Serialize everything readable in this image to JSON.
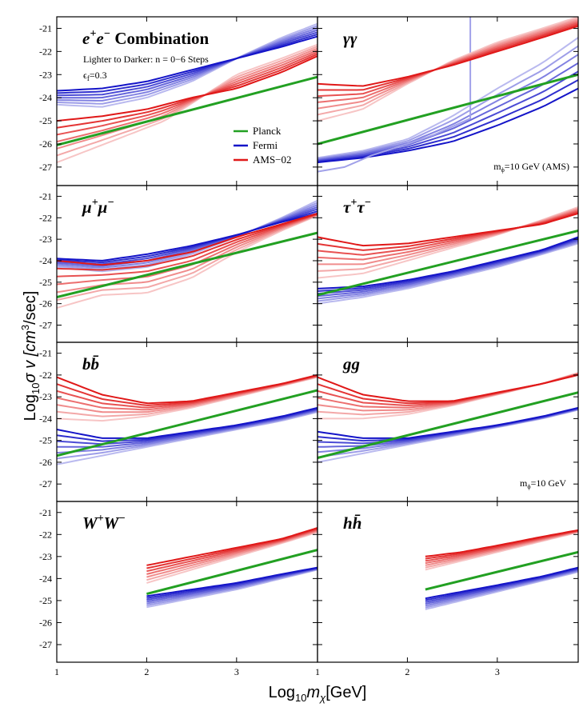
{
  "figure": {
    "xlabel_main": "Log",
    "xlabel_sub": "10",
    "xlabel_var": "m",
    "xlabel_var_sub": "χ",
    "xlabel_unit": "[GeV]",
    "ylabel_main": "Log",
    "ylabel_sub": "10",
    "ylabel_rest": "σ v [cm",
    "ylabel_sup": "3",
    "ylabel_end": "/sec]",
    "x_ticks": [
      "1",
      "2",
      "3",
      "1",
      "2",
      "3"
    ],
    "y_ticks": [
      "-21",
      "-22",
      "-23",
      "-24",
      "-25",
      "-26",
      "-27"
    ]
  },
  "legend": {
    "items": [
      {
        "label": "Planck",
        "color": "#22a022"
      },
      {
        "label": "Fermi",
        "color": "#1414c8"
      },
      {
        "label": "AMS−02",
        "color": "#e01818"
      }
    ]
  },
  "annotations": {
    "subtitle": "Lighter to Darker: n = 0−6 Steps",
    "eps_main": "ϵ",
    "eps_sub": "f",
    "eps_val": "=0.3",
    "mphi_ams_main": "m",
    "mphi_ams_sub": "ϕ",
    "mphi_ams_val": "=10 GeV (AMS)",
    "mphi_gg_main": "m",
    "mphi_gg_sub": "ϕ",
    "mphi_gg_val": "=10 GeV"
  },
  "chart_data": {
    "type": "line",
    "xlim": [
      1,
      3.9
    ],
    "ylim": [
      -27.8,
      -20.5
    ],
    "n_steps": 7,
    "colors": {
      "planck": "#22a022",
      "fermi": "#1414c8",
      "ams": "#e01818"
    },
    "panels": [
      {
        "key": "ee",
        "title_base": "e",
        "title_sup1": "+",
        "title_mid": "e",
        "title_sup2": "−",
        "title_suffix": " Combination",
        "x_start": 1.0,
        "x_end": 3.9,
        "planck": [
          [
            1.0,
            -26.05
          ],
          [
            3.9,
            -23.1
          ]
        ],
        "fermi_dark": [
          [
            1.0,
            -23.7
          ],
          [
            1.5,
            -23.6
          ],
          [
            2.0,
            -23.3
          ],
          [
            2.5,
            -22.8
          ],
          [
            3.0,
            -22.3
          ],
          [
            3.5,
            -21.8
          ],
          [
            3.9,
            -21.35
          ]
        ],
        "fermi_light": [
          [
            1.0,
            -24.3
          ],
          [
            1.5,
            -24.4
          ],
          [
            2.0,
            -24.0
          ],
          [
            2.5,
            -23.3
          ],
          [
            3.0,
            -22.3
          ],
          [
            3.5,
            -21.4
          ],
          [
            3.9,
            -20.8
          ]
        ],
        "ams_dark": [
          [
            1.0,
            -25.0
          ],
          [
            1.5,
            -24.8
          ],
          [
            2.0,
            -24.5
          ],
          [
            2.5,
            -24.0
          ],
          [
            3.0,
            -23.6
          ],
          [
            3.5,
            -22.9
          ],
          [
            3.9,
            -22.2
          ]
        ],
        "ams_light": [
          [
            1.0,
            -26.8
          ],
          [
            1.4,
            -26.2
          ],
          [
            1.8,
            -25.6
          ],
          [
            2.2,
            -25.0
          ],
          [
            2.6,
            -24.0
          ],
          [
            3.0,
            -23.0
          ],
          [
            3.5,
            -22.3
          ],
          [
            3.9,
            -21.7
          ]
        ]
      },
      {
        "key": "gg_photon",
        "title_base": "γγ",
        "title_sup1": "",
        "title_mid": "",
        "title_sup2": "",
        "title_suffix": "",
        "x_start": 1.0,
        "x_end": 3.9,
        "planck": [
          [
            1.0,
            -26.0
          ],
          [
            3.9,
            -23.0
          ]
        ],
        "fermi_dark": [
          [
            1.0,
            -26.8
          ],
          [
            1.5,
            -26.6
          ],
          [
            2.0,
            -26.3
          ],
          [
            2.5,
            -25.9
          ],
          [
            3.0,
            -25.2
          ],
          [
            3.5,
            -24.4
          ],
          [
            3.9,
            -23.6
          ]
        ],
        "fermi_light": [
          [
            1.0,
            -26.6
          ],
          [
            1.5,
            -26.3
          ],
          [
            2.0,
            -25.8
          ],
          [
            2.5,
            -24.8
          ],
          [
            3.0,
            -23.6
          ],
          [
            3.5,
            -22.5
          ],
          [
            3.9,
            -21.4
          ]
        ],
        "ams_dark": [
          [
            1.0,
            -23.4
          ],
          [
            1.5,
            -23.5
          ],
          [
            2.0,
            -23.1
          ],
          [
            2.5,
            -22.6
          ],
          [
            3.0,
            -22.0
          ],
          [
            3.5,
            -21.4
          ],
          [
            3.9,
            -20.9
          ]
        ],
        "ams_light": [
          [
            1.0,
            -25.0
          ],
          [
            1.5,
            -24.5
          ],
          [
            2.0,
            -23.4
          ],
          [
            2.5,
            -22.4
          ],
          [
            3.0,
            -21.6
          ],
          [
            3.5,
            -21.0
          ],
          [
            3.9,
            -20.5
          ]
        ],
        "fermi_step": [
          [
            1.0,
            -27.2
          ],
          [
            1.3,
            -27.0
          ],
          [
            1.6,
            -26.5
          ],
          [
            2.0,
            -26.0
          ],
          [
            2.3,
            -25.6
          ],
          [
            2.7,
            -24.9
          ],
          [
            2.7,
            -20.5
          ]
        ]
      },
      {
        "key": "mumu",
        "title_base": "μ",
        "title_sup1": "+",
        "title_mid": "μ",
        "title_sup2": "−",
        "title_suffix": "",
        "x_start": 1.0,
        "x_end": 3.9,
        "planck": [
          [
            1.0,
            -25.7
          ],
          [
            3.9,
            -22.7
          ]
        ],
        "fermi_dark": [
          [
            1.0,
            -23.9
          ],
          [
            1.5,
            -24.0
          ],
          [
            2.0,
            -23.7
          ],
          [
            2.5,
            -23.3
          ],
          [
            3.0,
            -22.8
          ],
          [
            3.5,
            -22.2
          ],
          [
            3.9,
            -21.8
          ]
        ],
        "fermi_light": [
          [
            1.0,
            -24.3
          ],
          [
            1.5,
            -24.5
          ],
          [
            2.0,
            -24.3
          ],
          [
            2.5,
            -23.7
          ],
          [
            3.0,
            -22.9
          ],
          [
            3.5,
            -22.0
          ],
          [
            3.9,
            -21.2
          ]
        ],
        "ams_dark": [
          [
            1.0,
            -24.0
          ],
          [
            1.5,
            -24.2
          ],
          [
            2.0,
            -24.0
          ],
          [
            2.5,
            -23.6
          ],
          [
            3.0,
            -22.9
          ],
          [
            3.5,
            -22.3
          ],
          [
            3.9,
            -21.8
          ]
        ],
        "ams_light": [
          [
            1.0,
            -26.2
          ],
          [
            1.5,
            -25.6
          ],
          [
            2.0,
            -25.5
          ],
          [
            2.5,
            -24.8
          ],
          [
            3.0,
            -23.6
          ],
          [
            3.5,
            -22.6
          ],
          [
            3.9,
            -21.9
          ]
        ]
      },
      {
        "key": "tautau",
        "title_base": "τ",
        "title_sup1": "+",
        "title_mid": "τ",
        "title_sup2": "−",
        "title_suffix": "",
        "x_start": 1.0,
        "x_end": 3.9,
        "planck": [
          [
            1.0,
            -25.6
          ],
          [
            3.9,
            -22.6
          ]
        ],
        "fermi_dark": [
          [
            1.0,
            -25.3
          ],
          [
            1.5,
            -25.2
          ],
          [
            2.0,
            -24.9
          ],
          [
            2.5,
            -24.5
          ],
          [
            3.0,
            -24.0
          ],
          [
            3.5,
            -23.5
          ],
          [
            3.9,
            -22.9
          ]
        ],
        "fermi_light": [
          [
            1.0,
            -26.0
          ],
          [
            1.5,
            -25.7
          ],
          [
            2.0,
            -25.3
          ],
          [
            2.5,
            -24.8
          ],
          [
            3.0,
            -24.3
          ],
          [
            3.5,
            -23.7
          ],
          [
            3.9,
            -23.2
          ]
        ],
        "ams_dark": [
          [
            1.0,
            -22.9
          ],
          [
            1.5,
            -23.3
          ],
          [
            2.0,
            -23.2
          ],
          [
            2.5,
            -22.9
          ],
          [
            3.0,
            -22.6
          ],
          [
            3.5,
            -22.3
          ],
          [
            3.9,
            -21.8
          ]
        ],
        "ams_light": [
          [
            1.0,
            -24.8
          ],
          [
            1.5,
            -24.6
          ],
          [
            2.0,
            -24.0
          ],
          [
            2.5,
            -23.4
          ],
          [
            3.0,
            -22.8
          ],
          [
            3.5,
            -22.1
          ],
          [
            3.9,
            -21.5
          ]
        ]
      },
      {
        "key": "bb",
        "title_base": "b",
        "title_sup1": "",
        "title_mid": "b̄",
        "title_sup2": "",
        "title_suffix": "",
        "x_start": 1.0,
        "x_end": 3.9,
        "planck": [
          [
            1.0,
            -25.7
          ],
          [
            3.9,
            -22.7
          ]
        ],
        "fermi_dark": [
          [
            1.0,
            -24.5
          ],
          [
            1.5,
            -24.9
          ],
          [
            2.0,
            -24.9
          ],
          [
            2.5,
            -24.6
          ],
          [
            3.0,
            -24.3
          ],
          [
            3.5,
            -23.9
          ],
          [
            3.9,
            -23.5
          ]
        ],
        "fermi_light": [
          [
            1.0,
            -26.1
          ],
          [
            1.5,
            -25.7
          ],
          [
            2.0,
            -25.3
          ],
          [
            2.5,
            -24.9
          ],
          [
            3.0,
            -24.5
          ],
          [
            3.5,
            -24.1
          ],
          [
            3.9,
            -23.7
          ]
        ],
        "ams_dark": [
          [
            1.0,
            -22.1
          ],
          [
            1.5,
            -22.9
          ],
          [
            2.0,
            -23.3
          ],
          [
            2.5,
            -23.2
          ],
          [
            3.0,
            -22.8
          ],
          [
            3.5,
            -22.4
          ],
          [
            3.9,
            -22.0
          ]
        ],
        "ams_light": [
          [
            1.0,
            -24.0
          ],
          [
            1.5,
            -24.1
          ],
          [
            2.0,
            -23.9
          ],
          [
            2.5,
            -23.5
          ],
          [
            3.0,
            -23.0
          ],
          [
            3.5,
            -22.5
          ],
          [
            3.9,
            -22.1
          ]
        ]
      },
      {
        "key": "gg",
        "title_base": "gg",
        "title_sup1": "",
        "title_mid": "",
        "title_sup2": "",
        "title_suffix": "",
        "x_start": 1.0,
        "x_end": 3.9,
        "planck": [
          [
            1.0,
            -25.8
          ],
          [
            3.9,
            -22.8
          ]
        ],
        "fermi_dark": [
          [
            1.0,
            -24.6
          ],
          [
            1.5,
            -24.9
          ],
          [
            2.0,
            -24.9
          ],
          [
            2.5,
            -24.6
          ],
          [
            3.0,
            -24.3
          ],
          [
            3.5,
            -23.9
          ],
          [
            3.9,
            -23.5
          ]
        ],
        "fermi_light": [
          [
            1.0,
            -26.0
          ],
          [
            1.5,
            -25.6
          ],
          [
            2.0,
            -25.2
          ],
          [
            2.5,
            -24.8
          ],
          [
            3.0,
            -24.4
          ],
          [
            3.5,
            -24.0
          ],
          [
            3.9,
            -23.6
          ]
        ],
        "ams_dark": [
          [
            1.0,
            -22.1
          ],
          [
            1.5,
            -22.9
          ],
          [
            2.0,
            -23.2
          ],
          [
            2.5,
            -23.2
          ],
          [
            3.0,
            -22.8
          ],
          [
            3.5,
            -22.4
          ],
          [
            3.9,
            -22.0
          ]
        ],
        "ams_light": [
          [
            1.0,
            -24.0
          ],
          [
            1.5,
            -24.0
          ],
          [
            2.0,
            -23.8
          ],
          [
            2.5,
            -23.4
          ],
          [
            3.0,
            -22.9
          ],
          [
            3.5,
            -22.4
          ],
          [
            3.9,
            -21.9
          ]
        ]
      },
      {
        "key": "ww",
        "title_base": "W",
        "title_sup1": "+",
        "title_mid": "W",
        "title_sup2": "−",
        "title_suffix": "",
        "x_start": 2.0,
        "x_end": 3.9,
        "planck": [
          [
            2.0,
            -24.7
          ],
          [
            3.9,
            -22.7
          ]
        ],
        "fermi_dark": [
          [
            2.0,
            -24.8
          ],
          [
            2.5,
            -24.5
          ],
          [
            3.0,
            -24.2
          ],
          [
            3.5,
            -23.8
          ],
          [
            3.9,
            -23.5
          ]
        ],
        "fermi_light": [
          [
            2.0,
            -25.3
          ],
          [
            2.5,
            -24.9
          ],
          [
            3.0,
            -24.5
          ],
          [
            3.5,
            -24.0
          ],
          [
            3.9,
            -23.6
          ]
        ],
        "ams_dark": [
          [
            2.0,
            -23.4
          ],
          [
            2.5,
            -23.0
          ],
          [
            3.0,
            -22.6
          ],
          [
            3.5,
            -22.2
          ],
          [
            3.9,
            -21.7
          ]
        ],
        "ams_light": [
          [
            2.0,
            -24.2
          ],
          [
            2.5,
            -23.6
          ],
          [
            3.0,
            -23.0
          ],
          [
            3.5,
            -22.4
          ],
          [
            3.9,
            -21.9
          ]
        ]
      },
      {
        "key": "hh",
        "title_base": "h",
        "title_sup1": "",
        "title_mid": "h̄",
        "title_sup2": "",
        "title_suffix": "",
        "x_start": 2.2,
        "x_end": 3.9,
        "planck": [
          [
            2.2,
            -24.5
          ],
          [
            3.9,
            -22.8
          ]
        ],
        "fermi_dark": [
          [
            2.2,
            -24.9
          ],
          [
            2.6,
            -24.6
          ],
          [
            3.0,
            -24.3
          ],
          [
            3.5,
            -23.9
          ],
          [
            3.9,
            -23.5
          ]
        ],
        "fermi_light": [
          [
            2.2,
            -25.4
          ],
          [
            2.6,
            -25.0
          ],
          [
            3.0,
            -24.6
          ],
          [
            3.5,
            -24.1
          ],
          [
            3.9,
            -23.7
          ]
        ],
        "ams_dark": [
          [
            2.2,
            -23.0
          ],
          [
            2.6,
            -22.8
          ],
          [
            3.0,
            -22.5
          ],
          [
            3.5,
            -22.1
          ],
          [
            3.9,
            -21.8
          ]
        ],
        "ams_light": [
          [
            2.2,
            -23.6
          ],
          [
            2.6,
            -23.2
          ],
          [
            3.0,
            -22.8
          ],
          [
            3.5,
            -22.3
          ],
          [
            3.9,
            -21.9
          ]
        ]
      }
    ]
  }
}
